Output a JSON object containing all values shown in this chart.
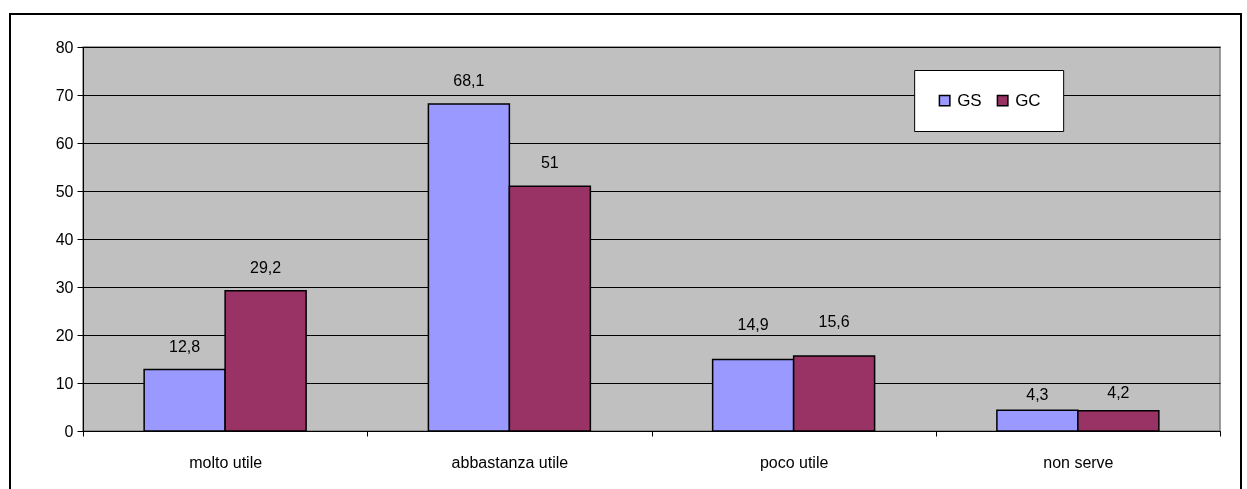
{
  "chart_data": {
    "type": "bar",
    "categories": [
      "molto utile",
      "abbastanza utile",
      "poco utile",
      "non serve"
    ],
    "series": [
      {
        "name": "GS",
        "color": "#9999ff",
        "values": [
          12.8,
          68.1,
          14.9,
          4.3
        ],
        "value_labels": [
          "12,8",
          "68,1",
          "14,9",
          "4,3"
        ]
      },
      {
        "name": "GC",
        "color": "#993366",
        "values": [
          29.2,
          51,
          15.6,
          4.2
        ],
        "value_labels": [
          "29,2",
          "51",
          "15,6",
          "4,2"
        ]
      }
    ],
    "ylim": [
      0,
      80
    ],
    "yticks": [
      0,
      10,
      20,
      30,
      40,
      50,
      60,
      70,
      80
    ],
    "grid": "y",
    "legend": "top right"
  }
}
